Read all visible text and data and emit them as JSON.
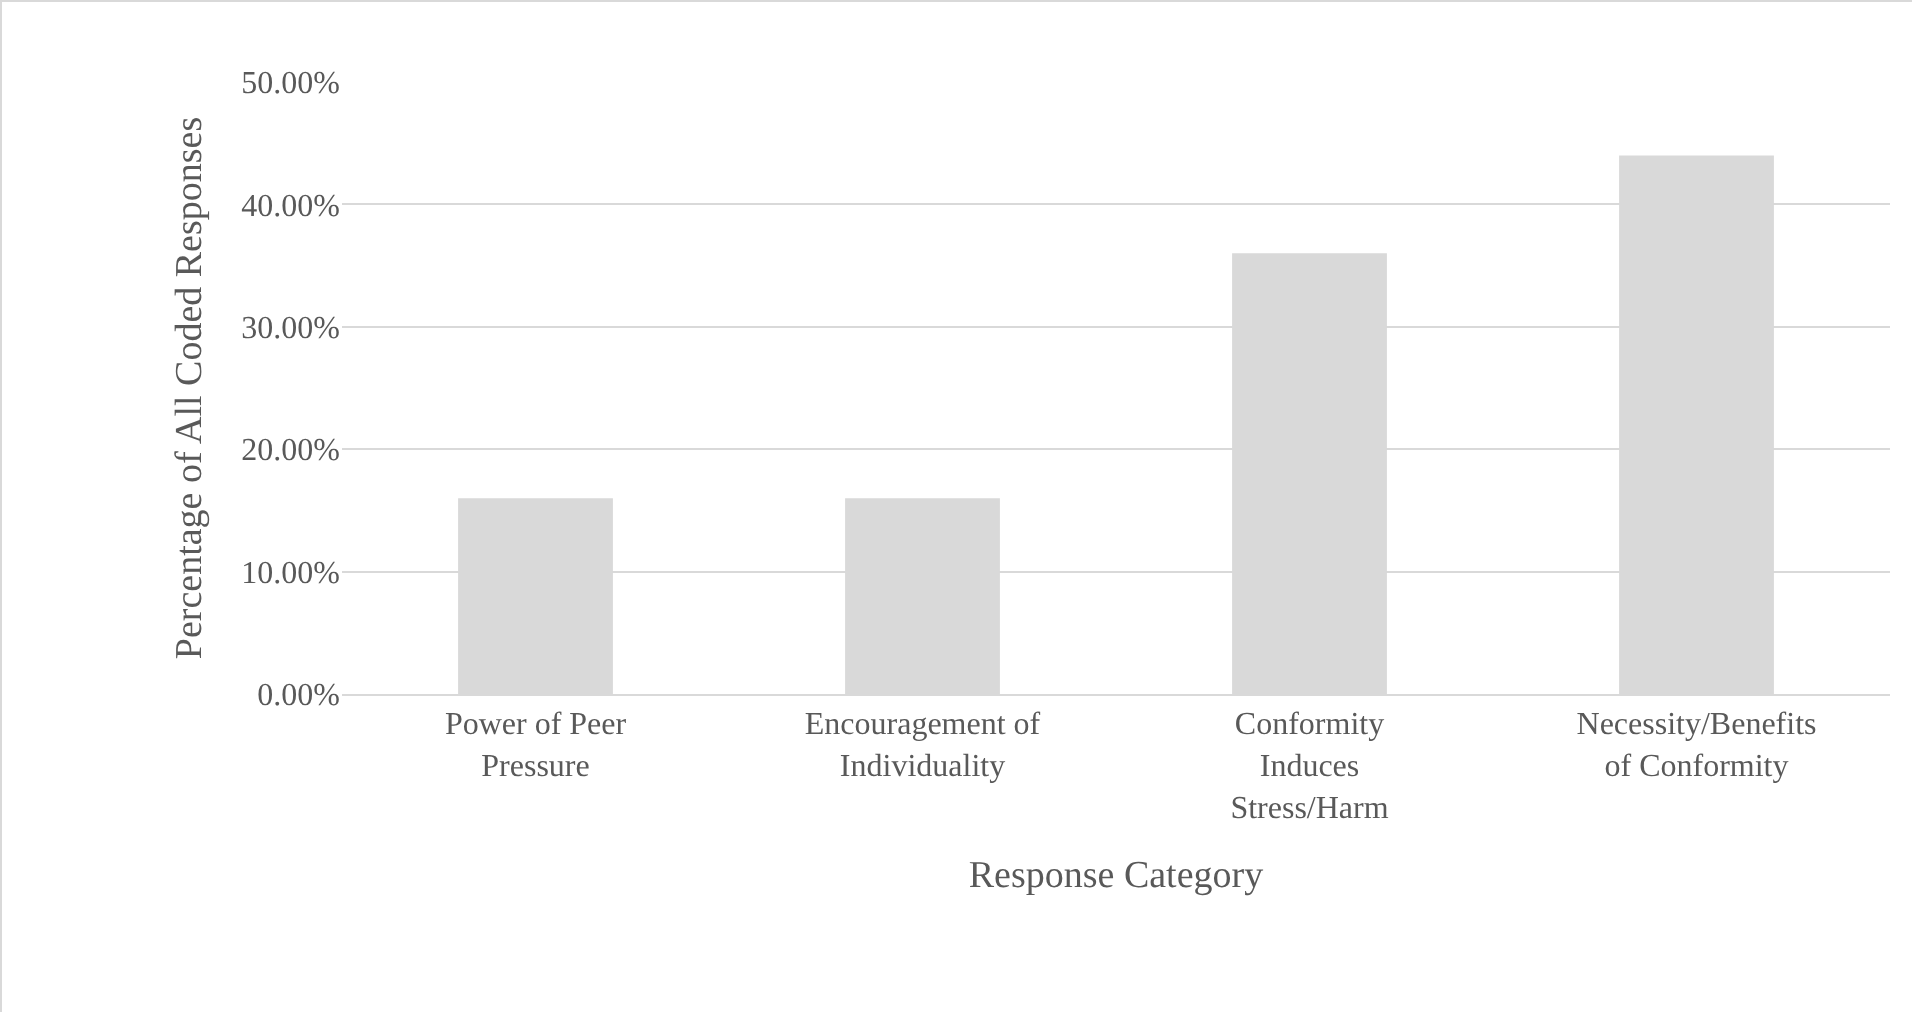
{
  "chart_data": {
    "type": "bar",
    "categories": [
      "Power of Peer Pressure",
      "Encouragement of Individuality",
      "Conformity Induces Stress/Harm",
      "Necessity/Benefits of Conformity"
    ],
    "values": [
      16,
      16,
      36,
      44
    ],
    "color": "#d9d9d9",
    "xlabel": "Response Category",
    "ylabel": "Percentage of All Coded Responses",
    "ylim": [
      0,
      50
    ],
    "yticks": [
      {
        "value": 0,
        "label": "0.00%"
      },
      {
        "value": 10,
        "label": "10.00%"
      },
      {
        "value": 20,
        "label": "20.00%"
      },
      {
        "value": 30,
        "label": "30.00%"
      },
      {
        "value": 40,
        "label": "40.00%"
      },
      {
        "value": 50,
        "label": "50.00%"
      }
    ],
    "grid": "y"
  }
}
